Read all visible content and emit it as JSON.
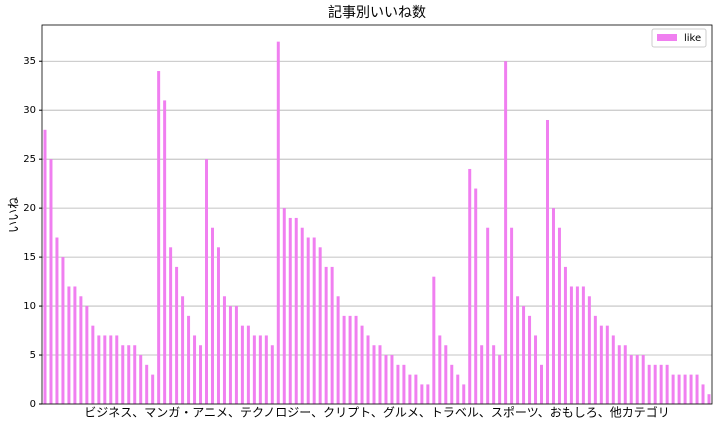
{
  "chart_data": {
    "type": "bar",
    "title": "記事別いいね数",
    "xlabel": "ビジネス、マンガ・アニメ、テクノロジー、クリプト、グルメ、トラベル、スポーツ、おもしろ、他カテゴリ",
    "ylabel": "いいね",
    "series": [
      {
        "name": "like",
        "color": "#f07ff0",
        "values": [
          28,
          25,
          17,
          15,
          12,
          12,
          11,
          10,
          8,
          7,
          7,
          7,
          7,
          6,
          6,
          6,
          5,
          4,
          3,
          34,
          31,
          16,
          14,
          11,
          9,
          7,
          6,
          25,
          18,
          16,
          11,
          10,
          10,
          8,
          8,
          7,
          7,
          7,
          6,
          37,
          20,
          19,
          19,
          18,
          17,
          17,
          16,
          14,
          14,
          11,
          9,
          9,
          9,
          8,
          7,
          6,
          6,
          5,
          5,
          4,
          4,
          3,
          3,
          2,
          2,
          13,
          7,
          6,
          4,
          3,
          2,
          24,
          22,
          6,
          18,
          6,
          5,
          35,
          18,
          11,
          10,
          9,
          7,
          4,
          29,
          20,
          18,
          14,
          12,
          12,
          12,
          11,
          9,
          8,
          8,
          7,
          6,
          6,
          5,
          5,
          5,
          4,
          4,
          4,
          4,
          3,
          3,
          3,
          3,
          3,
          2,
          1
        ]
      }
    ],
    "ylim": [
      0,
      38.7
    ],
    "yticks": [
      0,
      5,
      10,
      15,
      20,
      25,
      30,
      35
    ],
    "grid": true,
    "legend": "upper right"
  }
}
